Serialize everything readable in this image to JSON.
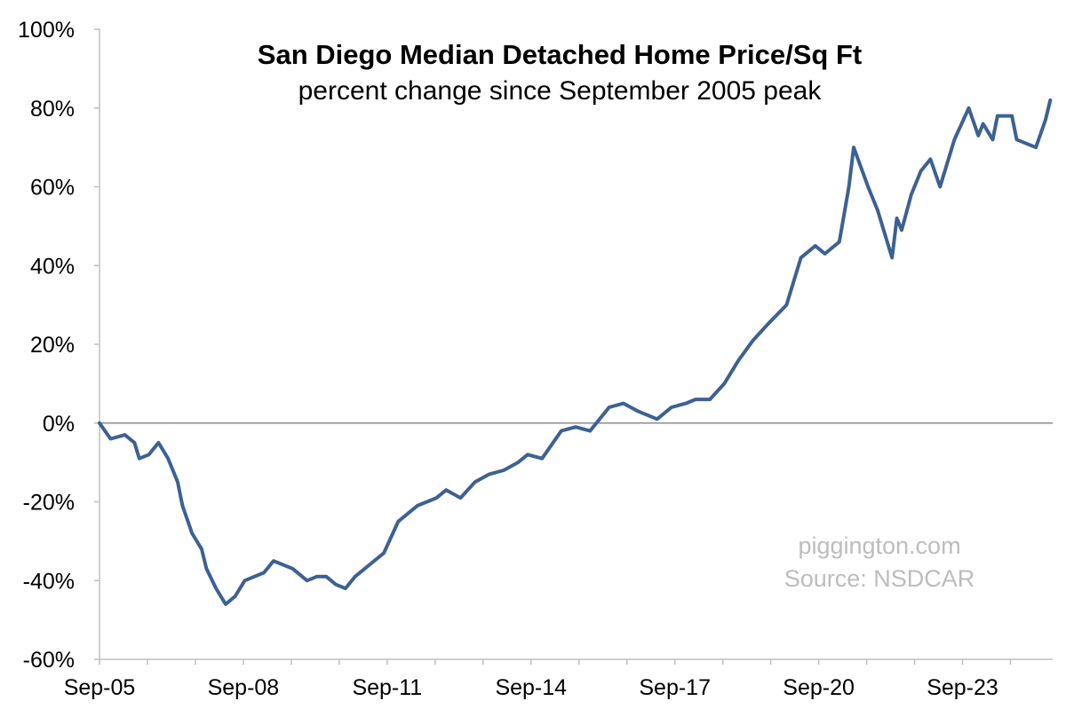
{
  "chart_data": {
    "type": "line",
    "title": "San Diego Median Detached Home Price/Sq Ft",
    "subtitle": "percent change since September 2005 peak",
    "xlabel": "",
    "ylabel": "",
    "ylim": [
      -60,
      100
    ],
    "y_ticks": [
      "-60%",
      "-40%",
      "-20%",
      "0%",
      "20%",
      "40%",
      "60%",
      "80%",
      "100%"
    ],
    "x_ticks": [
      "Sep-05",
      "Sep-08",
      "Sep-11",
      "Sep-14",
      "Sep-17",
      "Sep-20",
      "Sep-23"
    ],
    "grid": false,
    "legend": "none",
    "line_color": "#3d6192",
    "series": [
      {
        "x": [
          2005.67,
          2005.9,
          2006.2,
          2006.4,
          2006.5,
          2006.7,
          2006.9,
          2007.1,
          2007.3,
          2007.4,
          2007.6,
          2007.8,
          2007.9,
          2008.1,
          2008.3,
          2008.5,
          2008.7,
          2008.9,
          2009.1,
          2009.3,
          2009.5,
          2009.7,
          2010.0,
          2010.2,
          2010.4,
          2010.6,
          2010.8,
          2011.0,
          2011.3,
          2011.6,
          2011.9,
          2012.3,
          2012.7,
          2012.9,
          2013.2,
          2013.5,
          2013.8,
          2014.1,
          2014.4,
          2014.6,
          2014.9,
          2015.3,
          2015.6,
          2015.9,
          2016.3,
          2016.6,
          2016.9,
          2017.3,
          2017.6,
          2017.9,
          2018.1,
          2018.4,
          2018.7,
          2019.0,
          2019.3,
          2019.6,
          2020.0,
          2020.3,
          2020.6,
          2020.8,
          2020.9,
          2021.1,
          2021.3,
          2021.4,
          2021.7,
          2021.9,
          2022.0,
          2022.2,
          2022.3,
          2022.4,
          2022.6,
          2022.8,
          2023.0,
          2023.2,
          2023.5,
          2023.8,
          2024.0,
          2024.1,
          2024.3,
          2024.4,
          2024.7,
          2024.8,
          2025.2,
          2025.4,
          2025.5
        ],
        "values": [
          0,
          -4,
          -3,
          -5,
          -9,
          -8,
          -5,
          -9,
          -15,
          -21,
          -28,
          -32,
          -37,
          -42,
          -46,
          -44,
          -40,
          -39,
          -38,
          -35,
          -36,
          -37,
          -40,
          -39,
          -39,
          -41,
          -42,
          -39,
          -36,
          -33,
          -25,
          -21,
          -19,
          -17,
          -19,
          -15,
          -13,
          -12,
          -10,
          -8,
          -9,
          -2,
          -1,
          -2,
          4,
          5,
          3,
          1,
          4,
          5,
          6,
          6,
          10,
          16,
          21,
          25,
          30,
          42,
          45,
          43,
          44,
          46,
          60,
          70,
          60,
          54,
          50,
          42,
          52,
          49,
          58,
          64,
          67,
          60,
          72,
          80,
          73,
          76,
          72,
          78,
          78,
          72,
          70,
          77,
          82
        ]
      }
    ]
  },
  "watermark": {
    "line1": "piggington.com",
    "line2": "Source: NSDCAR"
  }
}
